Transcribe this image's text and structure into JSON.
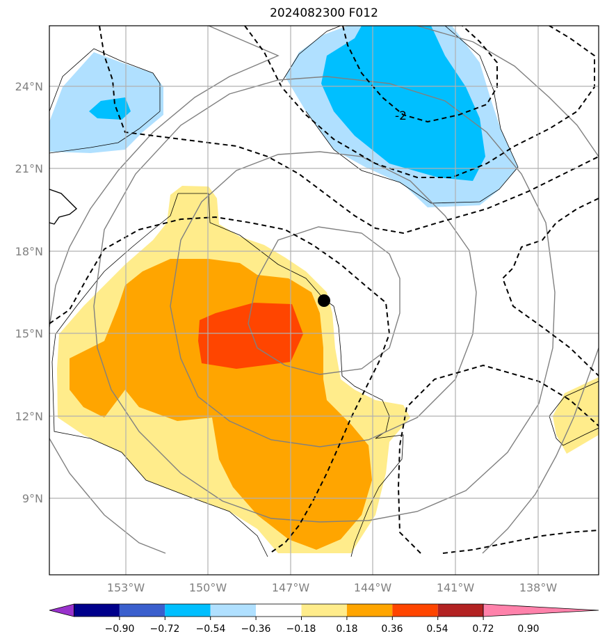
{
  "title": "2024082300 F012",
  "map": {
    "lat_labels": [
      "24°N",
      "21°N",
      "18°N",
      "15°N",
      "12°N",
      "9°N"
    ],
    "lon_labels": [
      "153°W",
      "150°W",
      "147°W",
      "144°W",
      "141°W",
      "138°W"
    ],
    "contour_label": "-2",
    "marker": "storm-center-dot"
  },
  "colorbar": {
    "ticks": [
      "−0.90",
      "−0.72",
      "−0.54",
      "−0.36",
      "−0.18",
      "0.18",
      "0.36",
      "0.54",
      "0.72",
      "0.90"
    ],
    "colors": [
      "#9932CC",
      "#00008B",
      "#3A5FCD",
      "#00BFFF",
      "#B0E0FF",
      "#FFFFFF",
      "#FFEC8B",
      "#FFA500",
      "#FF4500",
      "#B22222",
      "#FF82AB"
    ]
  }
}
